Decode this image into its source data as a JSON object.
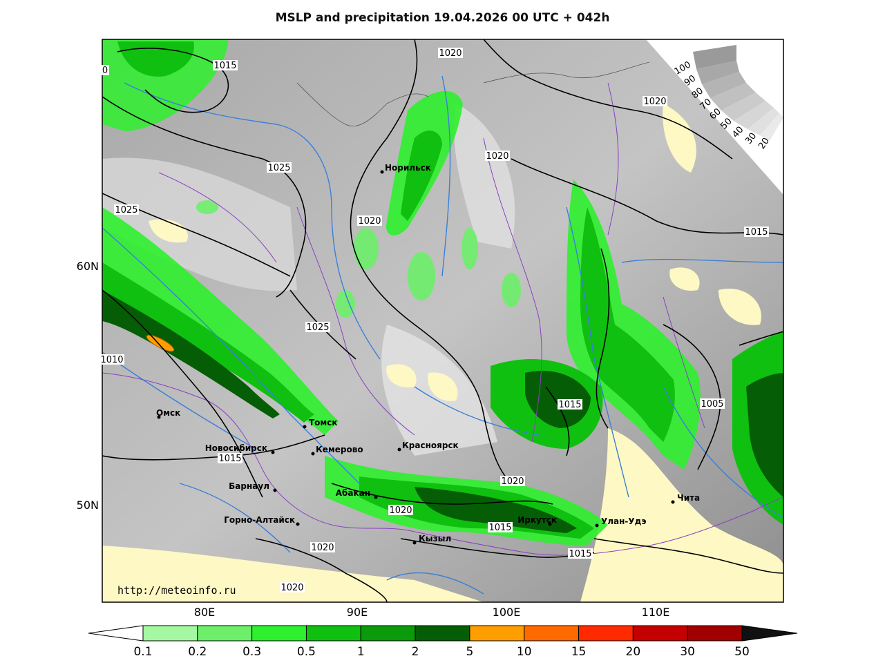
{
  "title": "MSLP and precipitation 19.04.2026 00 UTC + 042h",
  "watermark": "http://meteoinfo.ru",
  "lat_labels": [
    {
      "text": "60N",
      "lat": 60
    },
    {
      "text": "50N",
      "lat": 50
    }
  ],
  "lon_labels": [
    {
      "text": "80E",
      "lon": 80
    },
    {
      "text": "90E",
      "lon": 90
    },
    {
      "text": "100E",
      "lon": 100
    },
    {
      "text": "110E",
      "lon": 110
    }
  ],
  "cities": [
    {
      "name": "Норильск"
    },
    {
      "name": "Омск"
    },
    {
      "name": "Томск"
    },
    {
      "name": "Новосибирск"
    },
    {
      "name": "Кемерово"
    },
    {
      "name": "Красноярск"
    },
    {
      "name": "Барнаул"
    },
    {
      "name": "Абакан"
    },
    {
      "name": "Горно-Алтайск"
    },
    {
      "name": "Кызыл"
    },
    {
      "name": "Иркутск"
    },
    {
      "name": "Улан-Удэ"
    },
    {
      "name": "Чита"
    }
  ],
  "isobar_labels": [
    "1015",
    "1020",
    "1020",
    "1020",
    "1025",
    "1025",
    "1020",
    "1015",
    "1025",
    "1010",
    "1015",
    "1005",
    "1015",
    "1020",
    "1020",
    "1015",
    "1015",
    "1020",
    "1020",
    "0"
  ],
  "cloud_scale_labels": [
    "100",
    "90",
    "80",
    "70",
    "60",
    "50",
    "40",
    "30",
    "20"
  ],
  "colorbar": {
    "colors": [
      "#a6f7a1",
      "#6def6a",
      "#2ef02e",
      "#10c010",
      "#0a9a0a",
      "#055e05",
      "#ff9e00",
      "#ff6a00",
      "#ff2a00",
      "#c40000",
      "#a00000"
    ],
    "labels": [
      "0.1",
      "0.2",
      "0.3",
      "0.5",
      "1",
      "2",
      "5",
      "10",
      "15",
      "20",
      "30",
      "50"
    ]
  },
  "colors": {
    "map_gray": "#9a9a9a",
    "land_clear": "#fdf8c4",
    "isobar": "#000000",
    "isotherm": "#3a7fd8",
    "border": "#8a40c0"
  }
}
